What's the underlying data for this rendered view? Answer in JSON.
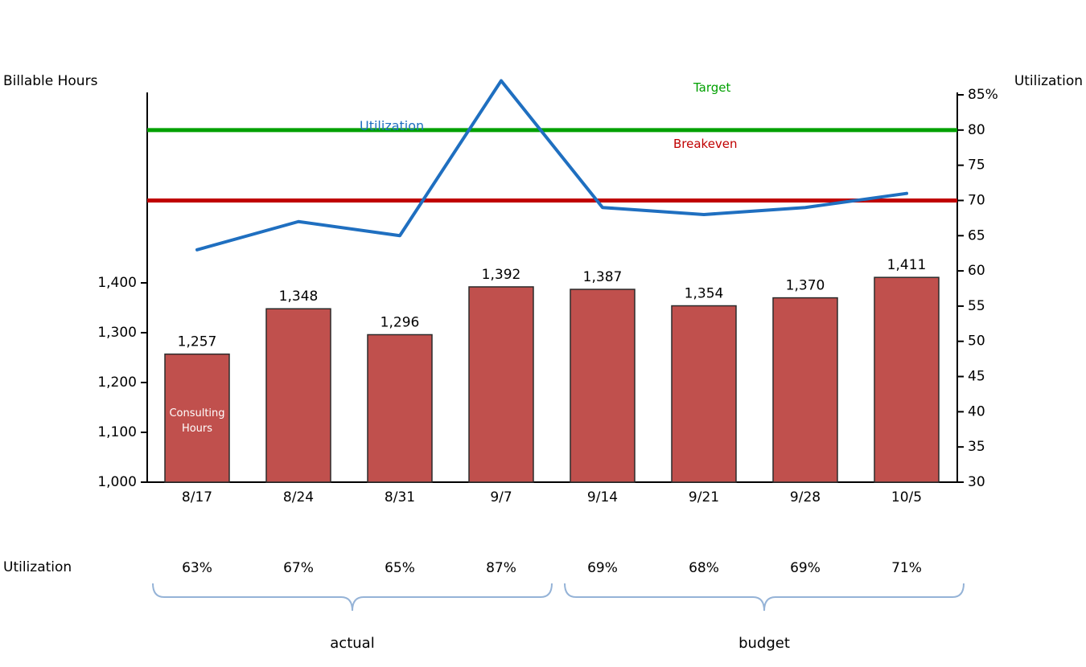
{
  "page": {
    "left_axis_title": "Billable Hours",
    "right_axis_title": "Utilization"
  },
  "chart_data": {
    "type": "combo-bar-line",
    "categories": [
      "8/17",
      "8/24",
      "8/31",
      "9/7",
      "9/14",
      "9/21",
      "9/28",
      "10/5"
    ],
    "series": [
      {
        "name": "Consulting Hours",
        "type": "bar",
        "axis": "left",
        "color": "#C0504D",
        "border_color": "#2b2b2b",
        "values": [
          1257,
          1348,
          1296,
          1392,
          1387,
          1354,
          1370,
          1411
        ],
        "labels": [
          "1,257",
          "1,348",
          "1,296",
          "1,392",
          "1,387",
          "1,354",
          "1,370",
          "1,411"
        ],
        "in_bar_label_lines": [
          "Consulting",
          "Hours"
        ]
      },
      {
        "name": "Utilization",
        "type": "line",
        "axis": "right",
        "color": "#1F6FC0",
        "values": [
          63,
          67,
          65,
          87,
          69,
          68,
          69,
          71
        ],
        "labels": [
          "63%",
          "67%",
          "65%",
          "87%",
          "69%",
          "68%",
          "69%",
          "71%"
        ]
      }
    ],
    "reference_lines": [
      {
        "name": "Target",
        "value": 80,
        "color": "#00A000",
        "label_color": "#00A000"
      },
      {
        "name": "Breakeven",
        "value": 70,
        "color": "#C00000",
        "label_color": "#C00000"
      }
    ],
    "left_axis": {
      "title": "Billable Hours",
      "min": 1000,
      "max": 1400,
      "step": 100,
      "tick_labels": [
        "1,000",
        "1,100",
        "1,200",
        "1,300",
        "1,400"
      ]
    },
    "right_axis": {
      "title": "Utilization",
      "min": 30,
      "max": 85,
      "step": 5,
      "tick_labels": [
        "30",
        "35",
        "40",
        "45",
        "50",
        "55",
        "60",
        "65",
        "70",
        "75",
        "80",
        "85%"
      ]
    },
    "annotations": {
      "series_label": "Utilization",
      "target_label": "Target",
      "breakeven_label": "Breakeven"
    },
    "utilization_row": {
      "label": "Utilization",
      "values": [
        "63%",
        "67%",
        "65%",
        "87%",
        "69%",
        "68%",
        "69%",
        "71%"
      ]
    },
    "groups": [
      {
        "label": "actual",
        "start": 0,
        "end": 3
      },
      {
        "label": "budget",
        "start": 4,
        "end": 7
      }
    ],
    "grid": false,
    "legend_position": "none",
    "brace_color": "#95B3D7"
  }
}
